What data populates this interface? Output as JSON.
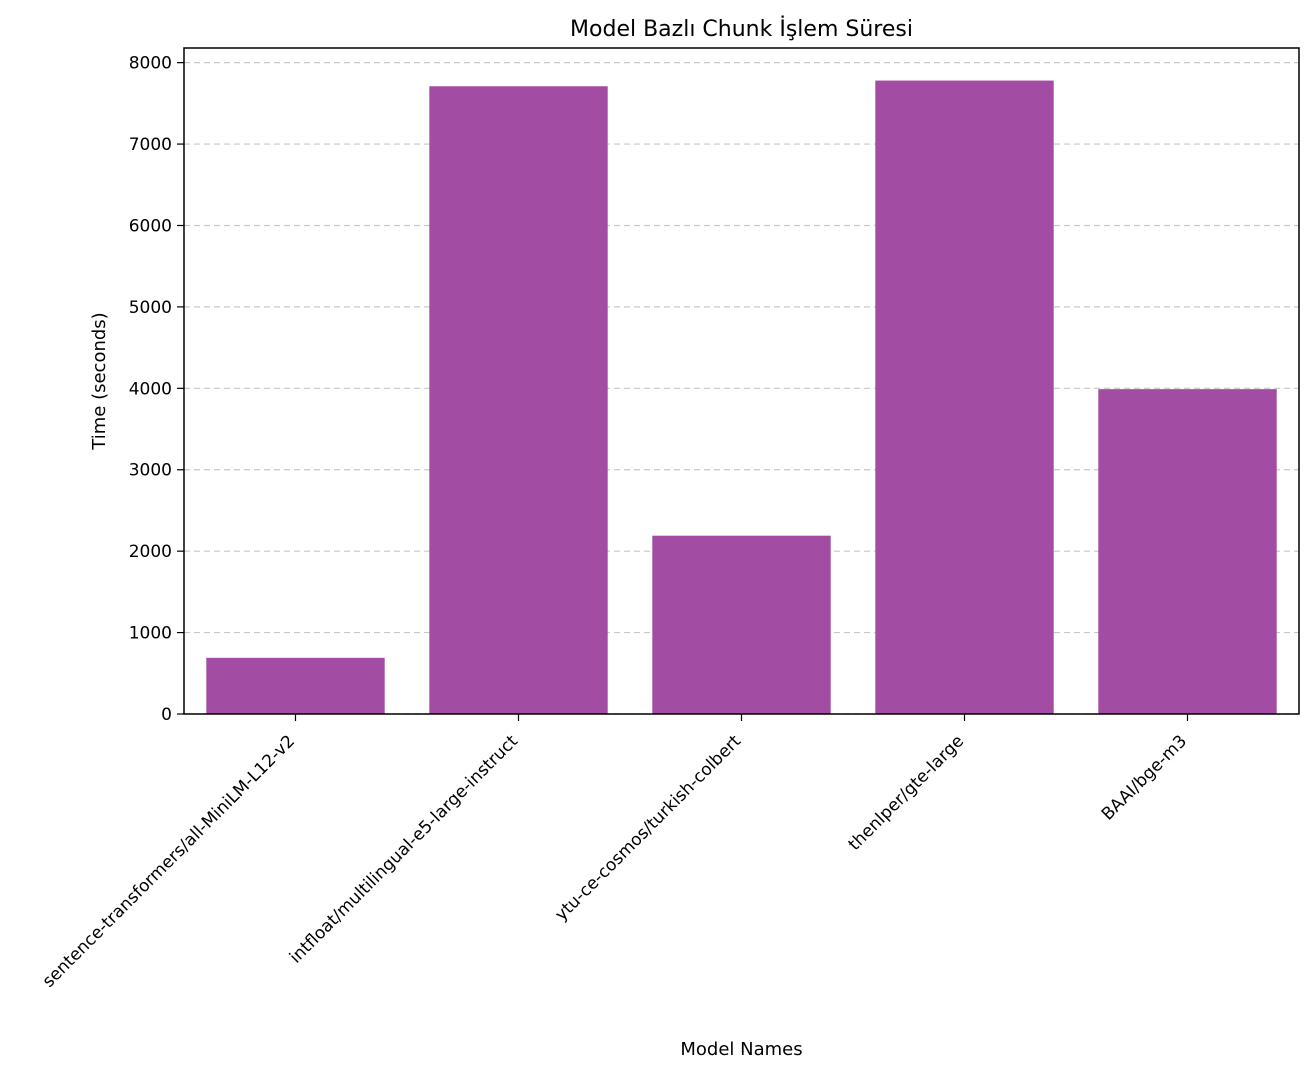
{
  "chart_data": {
    "type": "bar",
    "title": "Model Bazlı Chunk İşlem Süresi",
    "xlabel": "Model Names",
    "ylabel": "Time (seconds)",
    "categories": [
      "sentence-transformers/all-MiniLM-L12-v2",
      "intfloat/multilingual-e5-large-instruct",
      "ytu-ce-cosmos/turkish-colbert",
      "thenlper/gte-large",
      "BAAI/bge-m3"
    ],
    "values": [
      690,
      7710,
      2190,
      7780,
      3990
    ],
    "ylim": [
      0,
      8180
    ],
    "yticks": [
      0,
      1000,
      2000,
      3000,
      4000,
      5000,
      6000,
      7000,
      8000
    ],
    "grid": "y-dashed",
    "bar_color": "#a34ca3"
  }
}
